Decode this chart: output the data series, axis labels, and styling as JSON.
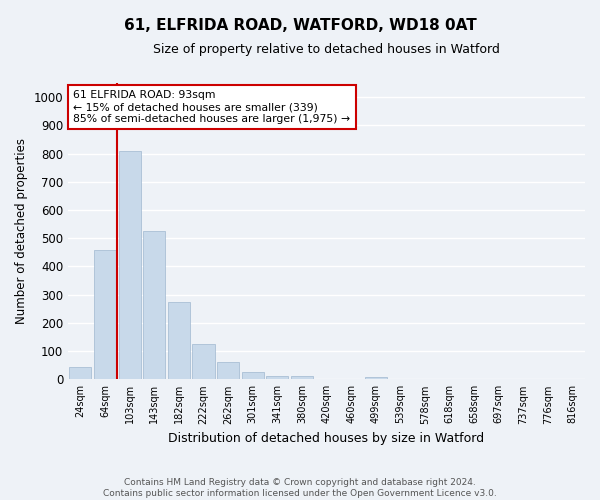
{
  "title1": "61, ELFRIDA ROAD, WATFORD, WD18 0AT",
  "title2": "Size of property relative to detached houses in Watford",
  "xlabel": "Distribution of detached houses by size in Watford",
  "ylabel": "Number of detached properties",
  "categories": [
    "24sqm",
    "64sqm",
    "103sqm",
    "143sqm",
    "182sqm",
    "222sqm",
    "262sqm",
    "301sqm",
    "341sqm",
    "380sqm",
    "420sqm",
    "460sqm",
    "499sqm",
    "539sqm",
    "578sqm",
    "618sqm",
    "658sqm",
    "697sqm",
    "737sqm",
    "776sqm",
    "816sqm"
  ],
  "values": [
    45,
    460,
    810,
    525,
    275,
    125,
    60,
    25,
    12,
    12,
    0,
    0,
    8,
    0,
    0,
    0,
    0,
    0,
    0,
    0,
    0
  ],
  "bar_color": "#c8d9ea",
  "bar_edge_color": "#a0b8d0",
  "vline_x_idx": 2,
  "vline_color": "#cc0000",
  "annotation_text": "61 ELFRIDA ROAD: 93sqm\n← 15% of detached houses are smaller (339)\n85% of semi-detached houses are larger (1,975) →",
  "annotation_box_color": "#ffffff",
  "annotation_box_edge": "#cc0000",
  "ylim": [
    0,
    1050
  ],
  "yticks": [
    0,
    100,
    200,
    300,
    400,
    500,
    600,
    700,
    800,
    900,
    1000
  ],
  "footnote": "Contains HM Land Registry data © Crown copyright and database right 2024.\nContains public sector information licensed under the Open Government Licence v3.0.",
  "bg_color": "#eef2f7",
  "grid_color": "#ffffff"
}
